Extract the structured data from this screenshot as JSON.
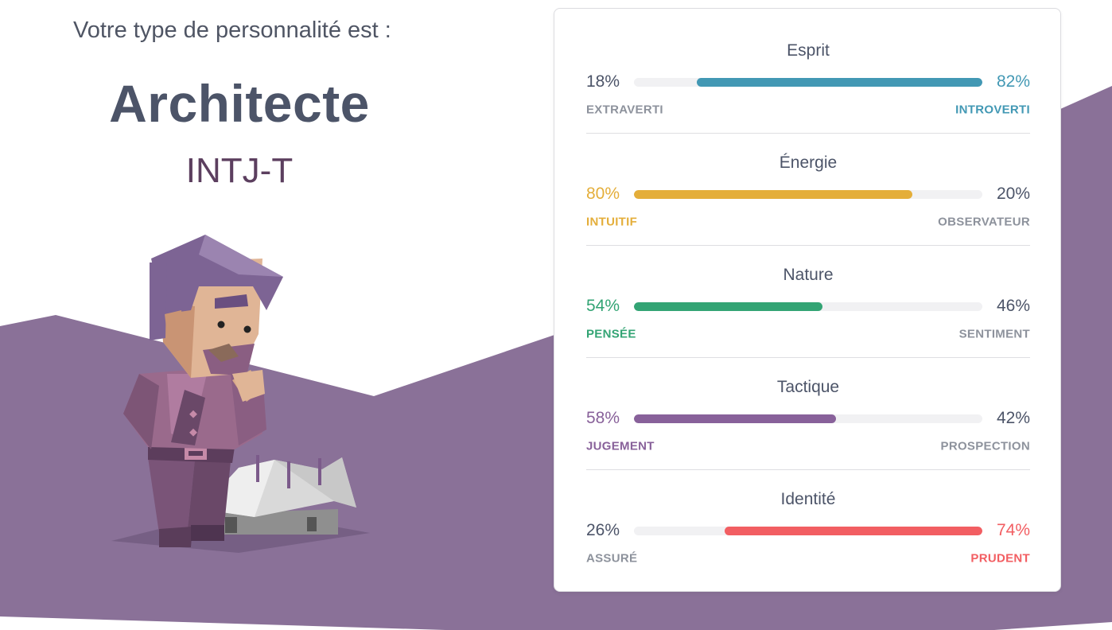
{
  "header": {
    "intro": "Votre type de personnalité est :",
    "type_name": "Architecte",
    "type_code": "INTJ-T"
  },
  "colors": {
    "background_purple": "#8a7198",
    "blue": "#4298b4",
    "yellow": "#e4ae3a",
    "green": "#33a474",
    "purple": "#88619a",
    "red": "#f25e62",
    "neutral_text": "#4c5468",
    "neutral_label": "#8d929c"
  },
  "traits": [
    {
      "title": "Esprit",
      "left_pct": "18%",
      "right_pct": "82%",
      "left_label": "EXTRAVERTI",
      "right_label": "INTROVERTI",
      "dominant": "right",
      "color": "#4298b4",
      "dominant_fraction": 0.82
    },
    {
      "title": "Énergie",
      "left_pct": "80%",
      "right_pct": "20%",
      "left_label": "INTUITIF",
      "right_label": "OBSERVATEUR",
      "dominant": "left",
      "color": "#e4ae3a",
      "dominant_fraction": 0.8
    },
    {
      "title": "Nature",
      "left_pct": "54%",
      "right_pct": "46%",
      "left_label": "PENSÉE",
      "right_label": "SENTIMENT",
      "dominant": "left",
      "color": "#33a474",
      "dominant_fraction": 0.54
    },
    {
      "title": "Tactique",
      "left_pct": "58%",
      "right_pct": "42%",
      "left_label": "JUGEMENT",
      "right_label": "PROSPECTION",
      "dominant": "left",
      "color": "#88619a",
      "dominant_fraction": 0.58
    },
    {
      "title": "Identité",
      "left_pct": "26%",
      "right_pct": "74%",
      "left_label": "ASSURÉ",
      "right_label": "PRUDENT",
      "dominant": "right",
      "color": "#f25e62",
      "dominant_fraction": 0.74
    }
  ],
  "illustration": {
    "icon": "architect-character-icon"
  }
}
